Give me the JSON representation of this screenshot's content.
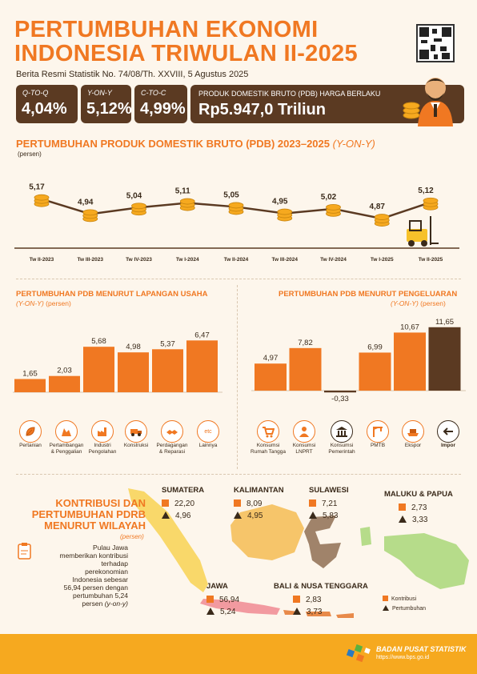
{
  "header": {
    "title_line1": "PERTUMBUHAN EKONOMI",
    "title_line2": "INDONESIA TRIWULAN II-2025",
    "subtitle": "Berita Resmi Statistik No. 74/08/Th. XXVIII, 5 Agustus 2025"
  },
  "stats": [
    {
      "label": "Q-TO-Q",
      "value": "4,04%"
    },
    {
      "label": "Y-ON-Y",
      "value": "5,12%"
    },
    {
      "label": "C-TO-C",
      "value": "4,99%"
    }
  ],
  "pdb": {
    "label": "PRODUK DOMESTIK BRUTO (PDB) HARGA BERLAKU",
    "value": "Rp5.947,0 Triliun"
  },
  "line_section": {
    "title": "PERTUMBUHAN PRODUK DOMESTIK BRUTO (PDB) 2023–2025",
    "title_em": "(Y-ON-Y)",
    "unit": "(persen)"
  },
  "lapangan_section": {
    "title": "PERTUMBUHAN PDB MENURUT LAPANGAN USAHA",
    "sub_em": "(Y-ON-Y)",
    "sub": "(persen)"
  },
  "pengeluaran_section": {
    "title": "PERTUMBUHAN PDB MENURUT PENGELUARAN",
    "sub_em": "(Y-ON-Y)",
    "sub": "(persen)"
  },
  "chart_data": [
    {
      "type": "line",
      "categories": [
        "Tw II-2023",
        "Tw III-2023",
        "Tw IV-2023",
        "Tw I-2024",
        "Tw II-2024",
        "Tw III-2024",
        "Tw IV-2024",
        "Tw I-2025",
        "Tw II-2025"
      ],
      "values": [
        5.17,
        4.94,
        5.04,
        5.11,
        5.05,
        4.95,
        5.02,
        4.87,
        5.12
      ],
      "labels": [
        "5,17",
        "4,94",
        "5,04",
        "5,11",
        "5,05",
        "4,95",
        "5,02",
        "4,87",
        "5,12"
      ],
      "ylim": [
        4.6,
        5.4
      ]
    },
    {
      "type": "bar",
      "categories": [
        "Pertanian",
        "Pertambangan & Penggalian",
        "Industri Pengolahan",
        "Konstruksi",
        "Perdagangan & Reparasi",
        "Lainnya"
      ],
      "values": [
        1.65,
        2.03,
        5.68,
        4.98,
        5.37,
        6.47
      ],
      "labels": [
        "1,65",
        "2,03",
        "5,68",
        "4,98",
        "5,37",
        "6,47"
      ],
      "ylim": [
        0,
        7
      ],
      "color": "#f07822"
    },
    {
      "type": "bar",
      "categories": [
        "Konsumsi Rumah Tangga",
        "Konsumsi LNPRT",
        "Konsumsi Pemerintah",
        "PMTB",
        "Ekspor",
        "Impor"
      ],
      "values": [
        4.97,
        7.82,
        -0.33,
        6.99,
        10.67,
        11.65
      ],
      "labels": [
        "4,97",
        "7,82",
        "-0,33",
        "6,99",
        "10,67",
        "11,65"
      ],
      "ylim": [
        -1,
        12
      ],
      "colors": [
        "#f07822",
        "#f07822",
        "#5b3a22",
        "#f07822",
        "#f07822",
        "#5b3a22"
      ]
    }
  ],
  "lapangan_icons": [
    {
      "icon": "leaf-icon",
      "line1": "Pertanian",
      "line2": ""
    },
    {
      "icon": "mining-icon",
      "line1": "Pertambangan",
      "line2": "& Penggalian"
    },
    {
      "icon": "factory-icon",
      "line1": "Industri",
      "line2": "Pengolahan"
    },
    {
      "icon": "truck-icon",
      "line1": "Konstruksi",
      "line2": ""
    },
    {
      "icon": "handshake-icon",
      "line1": "Perdagangan",
      "line2": "& Reparasi"
    },
    {
      "icon": "etc-icon",
      "line1": "Lainnya",
      "line2": ""
    }
  ],
  "lapangan_etc": "etc",
  "pengeluaran_icons": [
    {
      "icon": "cart-icon",
      "line1": "Konsumsi",
      "line2": "Rumah Tangga"
    },
    {
      "icon": "person-icon",
      "line1": "Konsumsi",
      "line2": "LNPRT"
    },
    {
      "icon": "building-icon",
      "line1": "Konsumsi",
      "line2": "Pemerintah"
    },
    {
      "icon": "crane-icon",
      "line1": "PMTB",
      "line2": ""
    },
    {
      "icon": "export-icon",
      "line1": "Ekspor",
      "line2": ""
    },
    {
      "icon": "import-icon",
      "line1": "Impor",
      "line2": ""
    }
  ],
  "region_section": {
    "title_line1": "KONTRIBUSI DAN",
    "title_line2": "PERTUMBUHAN PDRB",
    "title_line3": "MENURUT WILAYAH",
    "unit": "(persen)",
    "note_lines": [
      "Pulau Jawa",
      "memberikan kontribusi",
      "terhadap",
      "perekonomian",
      "Indonesia sebesar",
      "56,94 persen dengan",
      "pertumbuhan 5,24",
      "persen"
    ],
    "note_em": "(y-on-y)"
  },
  "regions": [
    {
      "name": "SUMATERA",
      "kontribusi": "22,20",
      "pertumbuhan": "4,96"
    },
    {
      "name": "KALIMANTAN",
      "kontribusi": "8,09",
      "pertumbuhan": "4,95"
    },
    {
      "name": "SULAWESI",
      "kontribusi": "7,21",
      "pertumbuhan": "5,83"
    },
    {
      "name": "MALUKU & PAPUA",
      "kontribusi": "2,73",
      "pertumbuhan": "3,33"
    },
    {
      "name": "JAWA",
      "kontribusi": "56,94",
      "pertumbuhan": "5,24"
    },
    {
      "name": "BALI & NUSA TENGGARA",
      "kontribusi": "2,83",
      "pertumbuhan": "3,73"
    }
  ],
  "legend": {
    "kontribusi": "Kontribusi",
    "pertumbuhan": "Pertumbuhan"
  },
  "footer": {
    "org": "BADAN PUSAT STATISTIK",
    "url": "https://www.bps.go.id"
  },
  "colors": {
    "orange": "#f07822",
    "brown": "#5b3a22",
    "background": "#fdf6ec",
    "footer": "#f6a91f"
  }
}
